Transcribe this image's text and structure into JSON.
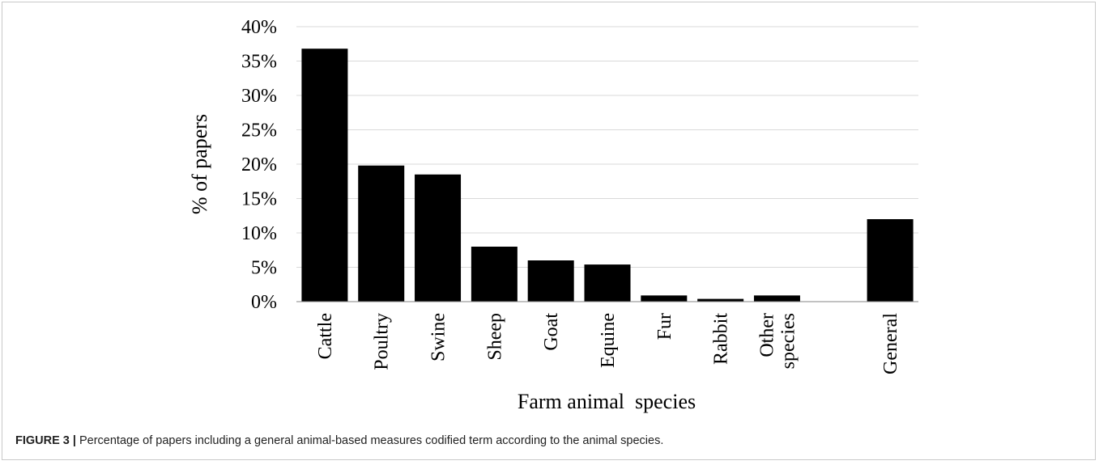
{
  "chart_data": {
    "type": "bar",
    "categories": [
      [
        "Cattle"
      ],
      [
        "Poultry"
      ],
      [
        "Swine"
      ],
      [
        "Sheep"
      ],
      [
        "Goat"
      ],
      [
        "Equine"
      ],
      [
        "Fur"
      ],
      [
        "Rabbit"
      ],
      [
        "Other",
        "species"
      ],
      [],
      [
        "General"
      ]
    ],
    "values": [
      36.8,
      19.8,
      18.5,
      8.0,
      6.0,
      5.4,
      0.9,
      0.4,
      0.9,
      null,
      12.0
    ],
    "ylim": [
      0,
      40
    ],
    "yticks": [
      "0%",
      "5%",
      "10%",
      "15%",
      "20%",
      "25%",
      "30%",
      "35%",
      "40%"
    ],
    "xlabel": "Farm animal  species",
    "ylabel": "% of papers",
    "grid": true,
    "bar_color": "#000000",
    "grid_color": "#d9d9d9",
    "axis_color": "#868686"
  },
  "caption": {
    "label": "FIGURE 3 |",
    "text": "Percentage of papers including a general animal-based measures codified term according to the animal species."
  }
}
